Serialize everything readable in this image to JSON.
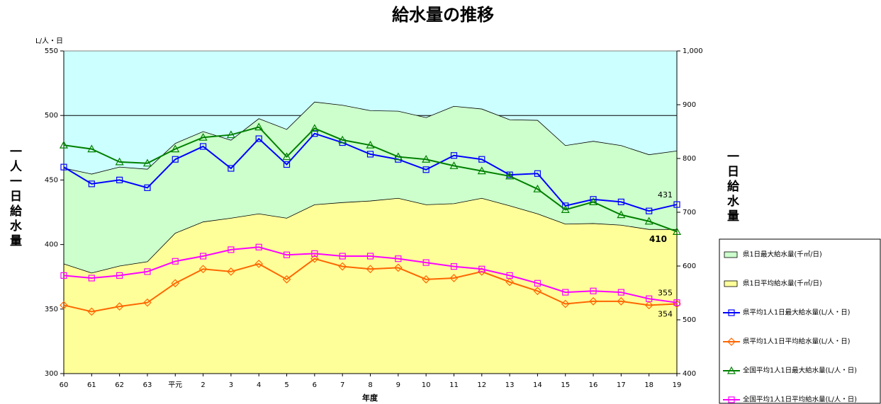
{
  "chart_data": {
    "type": "line",
    "title": "給水量の推移",
    "y_unit": "L/人・日",
    "ylabel": "一人一日給水量",
    "y2label": "一日給水量",
    "xlabel": "年度",
    "categories": [
      "60",
      "61",
      "62",
      "63",
      "平元",
      "2",
      "3",
      "4",
      "5",
      "6",
      "7",
      "8",
      "9",
      "10",
      "11",
      "12",
      "13",
      "14",
      "15",
      "16",
      "17",
      "18",
      "19"
    ],
    "ylim": [
      300,
      550
    ],
    "yticks": [
      300,
      350,
      400,
      450,
      500,
      550
    ],
    "y2lim": [
      400,
      1000
    ],
    "y2ticks": [
      400,
      500,
      600,
      700,
      800,
      900,
      {
        "value": 1000,
        "label": "1,000"
      }
    ],
    "grid": true,
    "plot_background": "#ccffff",
    "legend": "right",
    "series": [
      {
        "name": "県1日最大給水量(千㎥/日)",
        "type": "area",
        "axis": "y2",
        "color": "#ccffcc",
        "values": [
          782,
          771,
          784,
          780,
          828,
          850,
          834,
          874,
          854,
          905,
          899,
          889,
          888,
          876,
          897,
          892,
          872,
          871,
          824,
          832,
          824,
          807,
          814
        ]
      },
      {
        "name": "県1日平均給水量(千㎥/日)",
        "type": "area",
        "axis": "y2",
        "color": "#ffff99",
        "values": [
          604,
          587,
          600,
          608,
          661,
          682,
          689,
          697,
          689,
          714,
          718,
          721,
          726,
          714,
          716,
          726,
          712,
          697,
          678,
          679,
          676,
          668,
          668
        ]
      },
      {
        "name": "県平均1人1日最大給水量(L/人・日)",
        "type": "line",
        "marker": "square",
        "color": "#0000ff",
        "values": [
          460,
          447,
          450,
          444,
          466,
          476,
          459,
          482,
          462,
          486,
          479,
          470,
          466,
          458,
          469,
          466,
          454,
          455,
          430,
          435,
          433,
          426,
          431
        ]
      },
      {
        "name": "県平均1人1日平均給水量(L/人・日)",
        "type": "line",
        "marker": "diamond",
        "color": "#ff6600",
        "values": [
          353,
          348,
          352,
          355,
          370,
          381,
          379,
          385,
          373,
          389,
          383,
          381,
          382,
          373,
          374,
          379,
          371,
          364,
          354,
          356,
          356,
          353,
          354
        ]
      },
      {
        "name": "全国平均1人1日最大給水量(L/人・日)",
        "type": "line",
        "marker": "triangle",
        "color": "#008000",
        "values": [
          477,
          474,
          464,
          463,
          474,
          483,
          485,
          491,
          468,
          490,
          481,
          477,
          468,
          466,
          461,
          457,
          453,
          443,
          427,
          433,
          423,
          418,
          410
        ]
      },
      {
        "name": "全国平均1人1日平均給水量(L/人・日)",
        "type": "line",
        "marker": "square",
        "color": "#ff00ff",
        "values": [
          376,
          374,
          376,
          379,
          387,
          391,
          396,
          398,
          392,
          393,
          391,
          391,
          389,
          386,
          383,
          381,
          376,
          370,
          363,
          364,
          363,
          358,
          355
        ]
      }
    ]
  }
}
